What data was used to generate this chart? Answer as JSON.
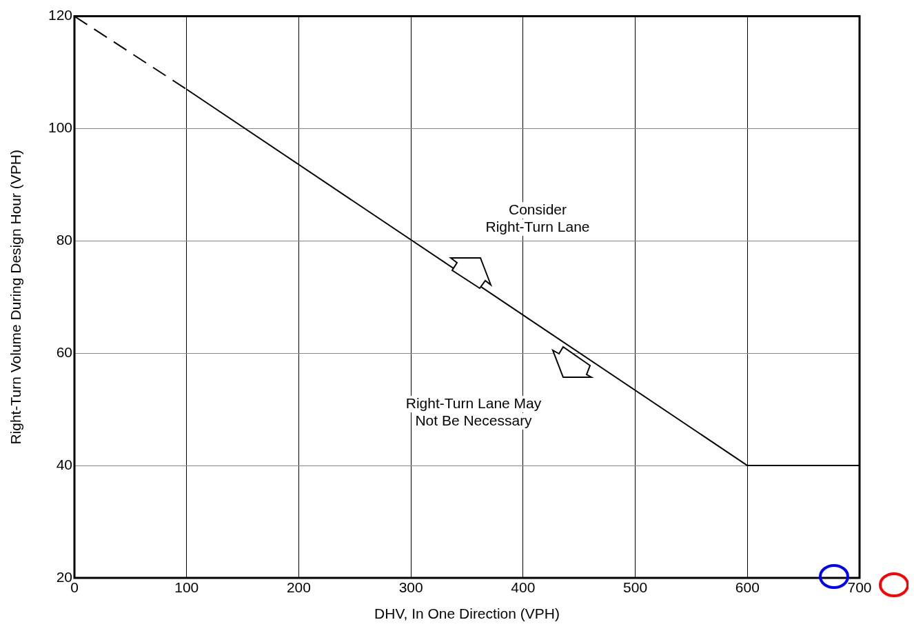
{
  "chart_data": {
    "type": "line",
    "xlabel": "DHV, In One Direction (VPH)",
    "ylabel": "Right-Turn Volume During Design Hour (VPH)",
    "series": [
      {
        "x": [
          0,
          100
        ],
        "values": [
          120,
          107
        ],
        "color": "#000000",
        "line_style": "dashed"
      },
      {
        "x": [
          100,
          600,
          700
        ],
        "values": [
          107,
          40,
          40
        ],
        "color": "#000000",
        "line_style": "solid"
      }
    ],
    "xlim": [
      0,
      700
    ],
    "xticks": [
      0,
      100,
      200,
      300,
      400,
      500,
      600,
      700
    ],
    "ylim": [
      20,
      120
    ],
    "yticks": [
      20,
      40,
      60,
      80,
      100,
      120
    ],
    "grid": true,
    "legend": false,
    "marker": "none",
    "annotations": [
      "Consider\nRight-Turn Lane",
      "Right-Turn Lane May\nNot Be Necessary"
    ]
  }
}
